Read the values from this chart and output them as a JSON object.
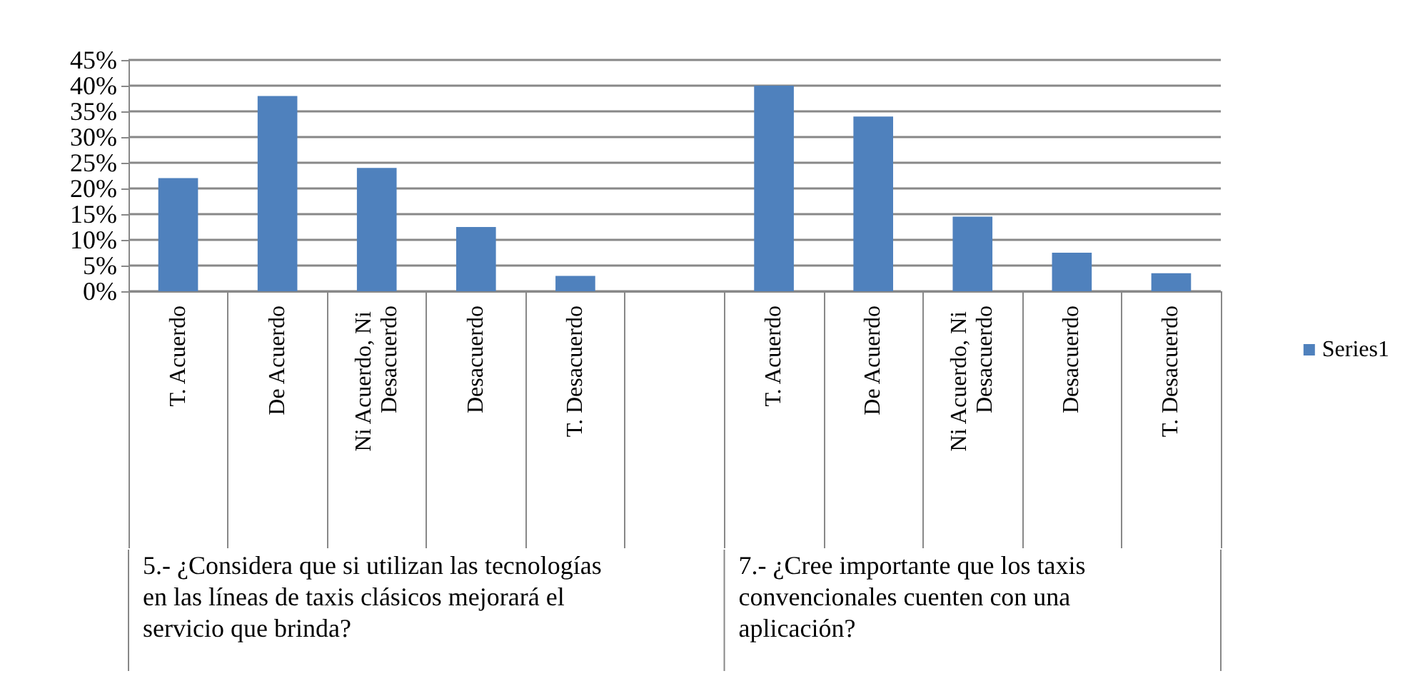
{
  "chart_data": {
    "type": "bar",
    "categories": [
      "T. Acuerdo",
      "De Acuerdo",
      "Ni Acuerdo, Ni Desacuerdo",
      "Desacuerdo",
      "T. Desacuerdo",
      null,
      "T. Acuerdo",
      "De Acuerdo",
      "Ni Acuerdo, Ni Desacuerdo",
      "Desacuerdo",
      "T. Desacuerdo"
    ],
    "series": [
      {
        "name": "Series1",
        "color": "#4f81bd",
        "values": [
          22,
          38,
          24,
          12.5,
          3,
          null,
          40,
          34,
          14.5,
          7.5,
          3.5
        ]
      }
    ],
    "ylim": [
      0,
      45
    ],
    "yticks": [
      {
        "value": 0,
        "label": "0%"
      },
      {
        "value": 5,
        "label": "5%"
      },
      {
        "value": 10,
        "label": "10%"
      },
      {
        "value": 15,
        "label": "15%"
      },
      {
        "value": 20,
        "label": "20%"
      },
      {
        "value": 25,
        "label": "25%"
      },
      {
        "value": 30,
        "label": "30%"
      },
      {
        "value": 35,
        "label": "35%"
      },
      {
        "value": 40,
        "label": "40%"
      },
      {
        "value": 45,
        "label": "45%"
      }
    ],
    "grid": "y",
    "legend": "right",
    "annotations": [
      "5.- ¿Considera que si utilizan las tecnologías en las líneas de taxis clásicos mejorará el servicio que brinda?",
      "7.- ¿Cree importante que los taxis convencionales cuenten con una aplicación?"
    ]
  }
}
